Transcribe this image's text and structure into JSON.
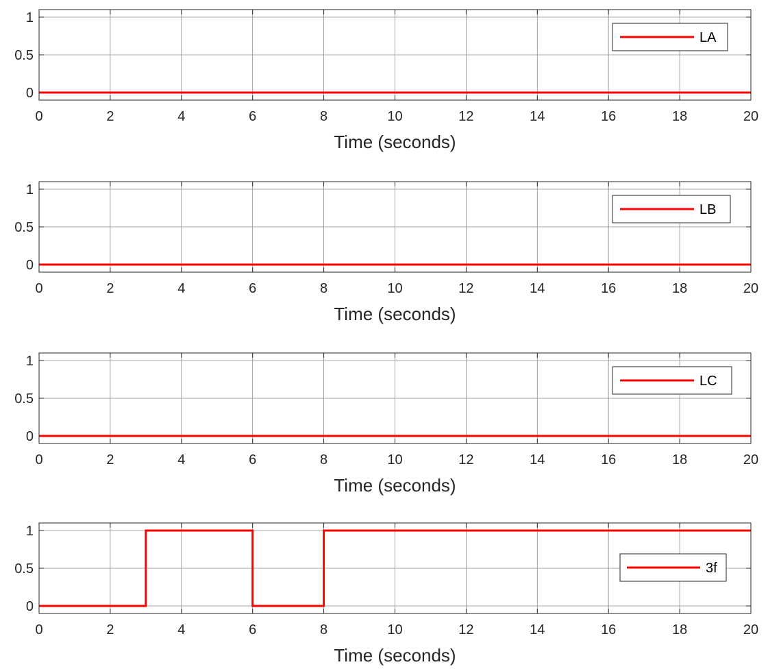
{
  "chart_data": [
    {
      "type": "line",
      "xlabel": "Time (seconds)",
      "ylabel": "",
      "xlim": [
        0,
        20
      ],
      "ylim": [
        -0.1,
        1.1
      ],
      "xticks": [
        0,
        2,
        4,
        6,
        8,
        10,
        12,
        14,
        16,
        18,
        20
      ],
      "yticks": [
        0,
        0.5,
        1
      ],
      "ytick_labels": [
        "0",
        "0.5",
        "1"
      ],
      "grid": true,
      "legend_position": "top-right",
      "series": [
        {
          "name": "LA",
          "color": "#ff0000",
          "step": true,
          "x": [
            0,
            20
          ],
          "y": [
            0,
            0
          ]
        }
      ]
    },
    {
      "type": "line",
      "xlabel": "Time (seconds)",
      "ylabel": "",
      "xlim": [
        0,
        20
      ],
      "ylim": [
        -0.1,
        1.1
      ],
      "xticks": [
        0,
        2,
        4,
        6,
        8,
        10,
        12,
        14,
        16,
        18,
        20
      ],
      "yticks": [
        0,
        0.5,
        1
      ],
      "ytick_labels": [
        "0",
        "0.5",
        "1"
      ],
      "grid": true,
      "legend_position": "top-right",
      "series": [
        {
          "name": "LB",
          "color": "#ff0000",
          "step": true,
          "x": [
            0,
            20
          ],
          "y": [
            0,
            0
          ]
        }
      ]
    },
    {
      "type": "line",
      "xlabel": "Time (seconds)",
      "ylabel": "",
      "xlim": [
        0,
        20
      ],
      "ylim": [
        -0.1,
        1.1
      ],
      "xticks": [
        0,
        2,
        4,
        6,
        8,
        10,
        12,
        14,
        16,
        18,
        20
      ],
      "yticks": [
        0,
        0.5,
        1
      ],
      "ytick_labels": [
        "0",
        "0.5",
        "1"
      ],
      "grid": true,
      "legend_position": "top-right",
      "series": [
        {
          "name": "LC",
          "color": "#ff0000",
          "step": true,
          "x": [
            0,
            20
          ],
          "y": [
            0,
            0
          ]
        }
      ]
    },
    {
      "type": "line",
      "xlabel": "Time (seconds)",
      "ylabel": "",
      "xlim": [
        0,
        20
      ],
      "ylim": [
        -0.1,
        1.1
      ],
      "xticks": [
        0,
        2,
        4,
        6,
        8,
        10,
        12,
        14,
        16,
        18,
        20
      ],
      "yticks": [
        0,
        0.5,
        1
      ],
      "ytick_labels": [
        "0",
        "0.5",
        "1"
      ],
      "grid": true,
      "legend_position": "right",
      "series": [
        {
          "name": "3f",
          "color": "#ff0000",
          "step": true,
          "x": [
            0,
            3,
            6,
            8,
            20
          ],
          "y": [
            0,
            1,
            0,
            1,
            1
          ]
        }
      ]
    }
  ]
}
